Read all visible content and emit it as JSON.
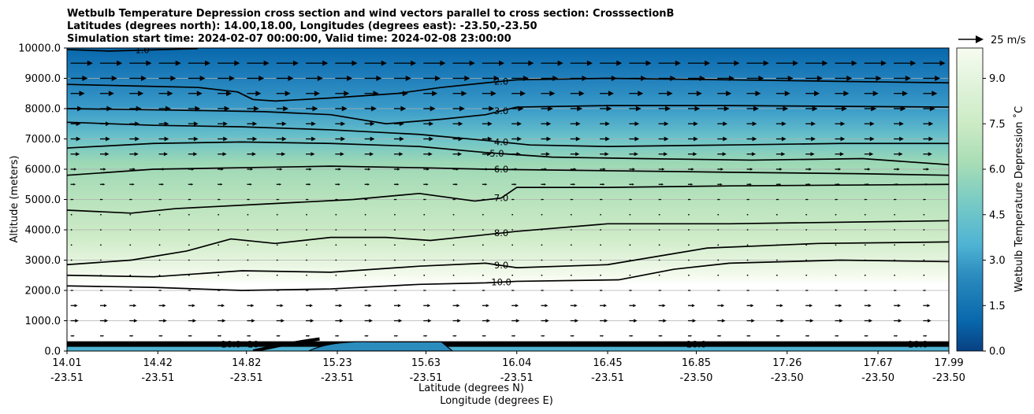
{
  "chart_data": {
    "type": "contour",
    "title_lines": [
      "Wetbulb Temperature Depression cross section and wind vectors parallel to cross section: CrosssectionB",
      "Latitudes (degrees north): 14.00,18.00, Longitudes (degrees east): -23.50,-23.50",
      "Simulation start time: 2024-02-07 00:00:00, Valid time: 2024-02-08 23:00:00"
    ],
    "xlabel": "Latitude (degrees N)",
    "xlabel2": "Longitude (degrees E)",
    "ylabel": "Altitude (meters)",
    "ylim": [
      0,
      10000
    ],
    "xlim": [
      14.01,
      17.99
    ],
    "x_ticks": [
      {
        "lat": "14.01",
        "lon": "-23.51",
        "v": 14.01
      },
      {
        "lat": "14.42",
        "lon": "-23.51",
        "v": 14.42
      },
      {
        "lat": "14.82",
        "lon": "-23.51",
        "v": 14.82
      },
      {
        "lat": "15.23",
        "lon": "-23.51",
        "v": 15.23
      },
      {
        "lat": "15.63",
        "lon": "-23.51",
        "v": 15.63
      },
      {
        "lat": "16.04",
        "lon": "-23.51",
        "v": 16.04
      },
      {
        "lat": "16.45",
        "lon": "-23.51",
        "v": 16.45
      },
      {
        "lat": "16.85",
        "lon": "-23.50",
        "v": 16.85
      },
      {
        "lat": "17.26",
        "lon": "-23.50",
        "v": 17.26
      },
      {
        "lat": "17.67",
        "lon": "-23.50",
        "v": 17.67
      },
      {
        "lat": "17.99",
        "lon": "-23.50",
        "v": 17.99
      }
    ],
    "y_ticks": [
      {
        "label": "0.0",
        "v": 0
      },
      {
        "label": "1000.0",
        "v": 1000
      },
      {
        "label": "2000.0",
        "v": 2000
      },
      {
        "label": "3000.0",
        "v": 3000
      },
      {
        "label": "4000.0",
        "v": 4000
      },
      {
        "label": "5000.0",
        "v": 5000
      },
      {
        "label": "6000.0",
        "v": 6000
      },
      {
        "label": "7000.0",
        "v": 7000
      },
      {
        "label": "8000.0",
        "v": 8000
      },
      {
        "label": "9000.0",
        "v": 9000
      },
      {
        "label": "10000.0",
        "v": 10000
      }
    ],
    "contours": [
      {
        "level": 1.0,
        "label": "1.0",
        "points": [
          [
            14.01,
            9950
          ],
          [
            14.2,
            9900
          ],
          [
            14.6,
            9980
          ]
        ]
      },
      {
        "level": 2.0,
        "label": "2.0",
        "points": [
          [
            14.01,
            8800
          ],
          [
            14.3,
            8750
          ],
          [
            14.6,
            8700
          ],
          [
            14.78,
            8550
          ],
          [
            14.85,
            8300
          ],
          [
            14.95,
            8250
          ],
          [
            15.2,
            8350
          ],
          [
            15.5,
            8500
          ],
          [
            15.7,
            8700
          ],
          [
            15.9,
            8850
          ],
          [
            16.04,
            8950
          ],
          [
            16.45,
            9000
          ],
          [
            17.0,
            8950
          ],
          [
            17.5,
            8900
          ],
          [
            17.99,
            8850
          ]
        ]
      },
      {
        "level": 3.0,
        "label": "3.0",
        "points": [
          [
            14.01,
            8000
          ],
          [
            14.5,
            7950
          ],
          [
            14.9,
            7900
          ],
          [
            15.2,
            7800
          ],
          [
            15.45,
            7500
          ],
          [
            15.7,
            7650
          ],
          [
            15.9,
            7800
          ],
          [
            16.04,
            8050
          ],
          [
            16.45,
            8100
          ],
          [
            17.0,
            8100
          ],
          [
            17.99,
            8050
          ]
        ]
      },
      {
        "level": 4.0,
        "label": "4.0",
        "points": [
          [
            14.01,
            7550
          ],
          [
            14.4,
            7450
          ],
          [
            14.8,
            7400
          ],
          [
            15.2,
            7300
          ],
          [
            15.6,
            7150
          ],
          [
            15.9,
            6950
          ],
          [
            16.1,
            6800
          ],
          [
            16.45,
            6750
          ],
          [
            17.0,
            6800
          ],
          [
            17.5,
            6850
          ],
          [
            17.99,
            6850
          ]
        ]
      },
      {
        "level": 5.0,
        "label": "5.0",
        "points": [
          [
            14.01,
            6700
          ],
          [
            14.4,
            6850
          ],
          [
            14.8,
            6900
          ],
          [
            15.2,
            6850
          ],
          [
            15.6,
            6750
          ],
          [
            15.9,
            6550
          ],
          [
            16.2,
            6400
          ],
          [
            16.6,
            6350
          ],
          [
            17.1,
            6300
          ],
          [
            17.6,
            6350
          ],
          [
            17.99,
            6150
          ]
        ]
      },
      {
        "level": 6.0,
        "label": "6.0",
        "points": [
          [
            14.01,
            5800
          ],
          [
            14.4,
            6000
          ],
          [
            14.8,
            6050
          ],
          [
            15.2,
            6100
          ],
          [
            15.6,
            6050
          ],
          [
            15.9,
            6000
          ],
          [
            16.45,
            5950
          ],
          [
            17.0,
            5900
          ],
          [
            17.6,
            5850
          ],
          [
            17.99,
            5800
          ]
        ]
      },
      {
        "level": 7.0,
        "label": "7.0",
        "points": [
          [
            14.01,
            4650
          ],
          [
            14.3,
            4550
          ],
          [
            14.5,
            4700
          ],
          [
            14.9,
            4850
          ],
          [
            15.3,
            5000
          ],
          [
            15.6,
            5200
          ],
          [
            15.85,
            4950
          ],
          [
            15.97,
            5050
          ],
          [
            16.04,
            5400
          ],
          [
            16.45,
            5400
          ],
          [
            17.0,
            5450
          ],
          [
            17.99,
            5500
          ]
        ]
      },
      {
        "level": 8.0,
        "label": "8.0",
        "points": [
          [
            14.01,
            2850
          ],
          [
            14.3,
            3000
          ],
          [
            14.55,
            3300
          ],
          [
            14.75,
            3700
          ],
          [
            14.95,
            3550
          ],
          [
            15.2,
            3750
          ],
          [
            15.45,
            3750
          ],
          [
            15.65,
            3650
          ],
          [
            15.85,
            3800
          ],
          [
            16.04,
            3950
          ],
          [
            16.45,
            4200
          ],
          [
            17.0,
            4200
          ],
          [
            17.99,
            4300
          ]
        ]
      },
      {
        "level": 9.0,
        "label": "9.0",
        "points": [
          [
            14.01,
            2500
          ],
          [
            14.4,
            2450
          ],
          [
            14.8,
            2650
          ],
          [
            15.2,
            2600
          ],
          [
            15.6,
            2800
          ],
          [
            15.9,
            2900
          ],
          [
            16.04,
            2750
          ],
          [
            16.45,
            2850
          ],
          [
            16.9,
            3400
          ],
          [
            17.4,
            3550
          ],
          [
            17.99,
            3600
          ]
        ]
      },
      {
        "level": 10.0,
        "label": "10.0",
        "points": [
          [
            14.01,
            2150
          ],
          [
            14.4,
            2100
          ],
          [
            14.8,
            2000
          ],
          [
            15.2,
            2050
          ],
          [
            15.6,
            2200
          ],
          [
            15.9,
            2250
          ],
          [
            16.04,
            2300
          ],
          [
            16.5,
            2350
          ],
          [
            16.75,
            2700
          ],
          [
            17.0,
            2900
          ],
          [
            17.5,
            3000
          ],
          [
            17.99,
            2950
          ]
        ]
      }
    ],
    "surface_labels": [
      "10.0",
      "10",
      "10.0",
      "10.0"
    ],
    "wind": {
      "reference": "25 m/s",
      "max_speed_ms": 25,
      "levels": [
        {
          "alt": 0,
          "speed": 2
        },
        {
          "alt": 500,
          "speed": 4
        },
        {
          "alt": 1000,
          "speed": 8
        },
        {
          "alt": 1500,
          "speed": 7
        },
        {
          "alt": 2000,
          "speed": 3
        },
        {
          "alt": 2500,
          "speed": 1
        },
        {
          "alt": 3000,
          "speed": 1
        },
        {
          "alt": 3500,
          "speed": 1
        },
        {
          "alt": 4000,
          "speed": 1
        },
        {
          "alt": 4500,
          "speed": 1
        },
        {
          "alt": 5000,
          "speed": 3
        },
        {
          "alt": 5500,
          "speed": 5
        },
        {
          "alt": 6000,
          "speed": 6
        },
        {
          "alt": 6500,
          "speed": 9
        },
        {
          "alt": 7000,
          "speed": 10
        },
        {
          "alt": 7500,
          "speed": 10
        },
        {
          "alt": 8000,
          "speed": 12
        },
        {
          "alt": 8500,
          "speed": 14
        },
        {
          "alt": 9000,
          "speed": 17
        },
        {
          "alt": 9500,
          "speed": 22
        },
        {
          "alt": 10000,
          "speed": 22
        }
      ],
      "columns": 30
    },
    "colorbar": {
      "label": "Wetbulb Temperature Depression ˚C",
      "min": 0.0,
      "max": 10.0,
      "ticks": [
        {
          "label": "0.0",
          "v": 0
        },
        {
          "label": "1.5",
          "v": 1.5
        },
        {
          "label": "3.0",
          "v": 3.0
        },
        {
          "label": "4.5",
          "v": 4.5
        },
        {
          "label": "6.0",
          "v": 6.0
        },
        {
          "label": "7.5",
          "v": 7.5
        },
        {
          "label": "9.0",
          "v": 9.0
        }
      ],
      "colors": [
        "#084081",
        "#0868ac",
        "#2b8cbe",
        "#4eb3d3",
        "#7bccc4",
        "#a8ddb5",
        "#ccebc5",
        "#e0f3db",
        "#f7fcf0",
        "#ffffff"
      ]
    }
  }
}
